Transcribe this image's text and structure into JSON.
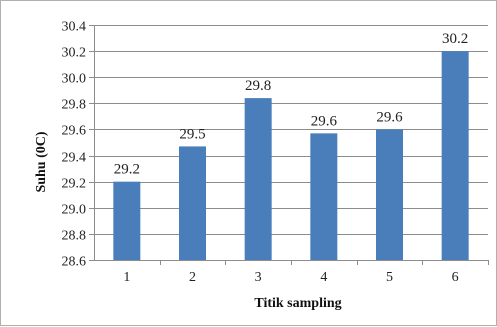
{
  "chart_data": {
    "type": "bar",
    "title": "",
    "xlabel": "Titik sampling",
    "ylabel": "Suhu (0C)",
    "categories": [
      "1",
      "2",
      "3",
      "4",
      "5",
      "6"
    ],
    "values": [
      29.2,
      29.47,
      29.84,
      29.57,
      29.6,
      30.2
    ],
    "data_labels": [
      "29.2",
      "29.5",
      "29.8",
      "29.6",
      "29.6",
      "30.2"
    ],
    "ylim": [
      28.6,
      30.4
    ],
    "yticks": [
      "28.6",
      "28.8",
      "29.0",
      "29.2",
      "29.4",
      "29.6",
      "29.8",
      "30.0",
      "30.2",
      "30.4"
    ],
    "grid": true,
    "legend": "none",
    "bar_color": "#4a7ebb",
    "grid_color": "#8c8c8c",
    "axis_color": "#8c8c8c"
  }
}
